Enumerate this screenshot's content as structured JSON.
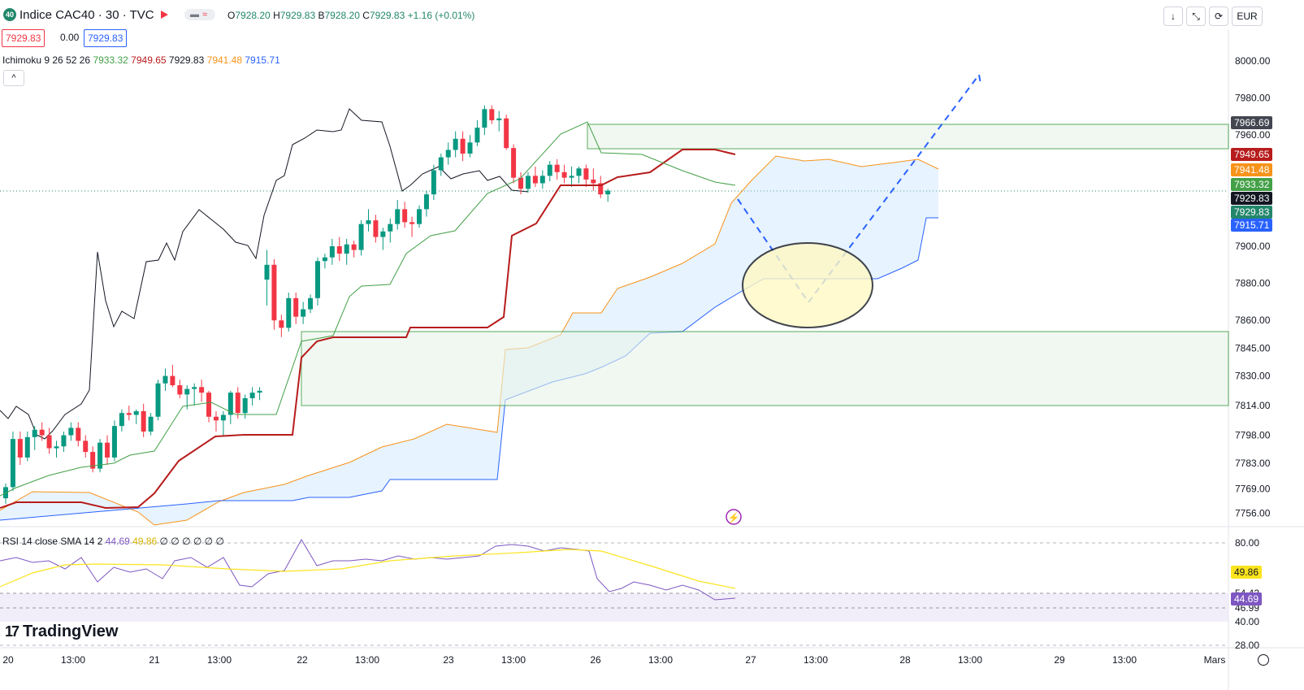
{
  "header": {
    "symbol_badge": "40",
    "title": "Indice CAC40 · 30 · TVC",
    "ohlc": {
      "o_label": "O",
      "o": "7928.20",
      "h_label": "H",
      "h": "7929.83",
      "b_label": "B",
      "b": "7928.20",
      "c_label": "C",
      "c": "7929.83",
      "change": "+1.16 (+0.01%)"
    },
    "sell_price": "7929.83",
    "spread": "0.00",
    "buy_price": "7929.83",
    "currency": "EUR",
    "buttons": [
      "↓",
      "⤡",
      "⟳"
    ]
  },
  "indicator": {
    "name": "Ichimoku",
    "params": "9 26 52 26",
    "values": [
      {
        "v": "7933.32",
        "color": "#43a047"
      },
      {
        "v": "7949.65",
        "color": "#b71c1c"
      },
      {
        "v": "7929.83",
        "color": "#131722"
      },
      {
        "v": "7941.48",
        "color": "#f7931a"
      },
      {
        "v": "7915.71",
        "color": "#2962ff"
      }
    ],
    "collapse_icon": "^"
  },
  "rsi": {
    "name": "RSI",
    "params": "14 close SMA 14 2",
    "value": "44.69",
    "sma": "49.86",
    "extra": "∅ ∅ ∅ ∅ ∅ ∅",
    "axis": [
      "80.00",
      "54.42",
      "46.99",
      "40.00",
      "28.00"
    ],
    "labels": [
      {
        "v": "49.86",
        "color": "#fbe41d",
        "fg": "#131722"
      },
      {
        "v": "44.69",
        "color": "#7e57c2",
        "fg": "#ffffff"
      }
    ]
  },
  "logo": "TradingView",
  "chart_data": {
    "type": "candlestick",
    "title": "Indice CAC40 · 30 · TVC",
    "y_axis_labels": [
      "8000.00",
      "7980.00",
      "7960.00",
      "7900.00",
      "7880.00",
      "7860.00",
      "7845.00",
      "7830.00",
      "7814.00",
      "7798.00",
      "7783.00",
      "7769.00",
      "7756.00"
    ],
    "price_labels": [
      {
        "v": "7966.69",
        "color": "#434651"
      },
      {
        "v": "7949.65",
        "color": "#b71c1c"
      },
      {
        "v": "7941.48",
        "color": "#f7931a"
      },
      {
        "v": "7933.32",
        "color": "#43a047"
      },
      {
        "v": "7929.83",
        "color": "#131722"
      },
      {
        "v": "7929.83",
        "color": "#22876b"
      },
      {
        "v": "7915.71",
        "color": "#2962ff"
      }
    ],
    "x_axis_labels": [
      "20",
      "13:00",
      "21",
      "13:00",
      "22",
      "13:00",
      "23",
      "13:00",
      "26",
      "13:00",
      "27",
      "13:00",
      "28",
      "13:00",
      "29",
      "13:00",
      "Mars"
    ],
    "candles": [
      [
        7764,
        7772,
        7761,
        7770
      ],
      [
        7770,
        7800,
        7768,
        7796
      ],
      [
        7796,
        7800,
        7782,
        7786
      ],
      [
        7786,
        7800,
        7784,
        7797
      ],
      [
        7797,
        7803,
        7790,
        7801
      ],
      [
        7801,
        7805,
        7795,
        7798
      ],
      [
        7798,
        7802,
        7788,
        7791
      ],
      [
        7791,
        7795,
        7786,
        7792
      ],
      [
        7792,
        7800,
        7789,
        7798
      ],
      [
        7798,
        7805,
        7795,
        7802
      ],
      [
        7802,
        7805,
        7792,
        7795
      ],
      [
        7795,
        7798,
        7786,
        7789
      ],
      [
        7789,
        7792,
        7778,
        7780
      ],
      [
        7780,
        7796,
        7778,
        7794
      ],
      [
        7794,
        7798,
        7782,
        7786
      ],
      [
        7786,
        7806,
        7784,
        7803
      ],
      [
        7803,
        7812,
        7800,
        7810
      ],
      [
        7810,
        7814,
        7806,
        7809
      ],
      [
        7809,
        7812,
        7804,
        7811
      ],
      [
        7811,
        7815,
        7797,
        7800
      ],
      [
        7800,
        7810,
        7798,
        7808
      ],
      [
        7808,
        7828,
        7806,
        7826
      ],
      [
        7826,
        7834,
        7822,
        7830
      ],
      [
        7830,
        7836,
        7824,
        7825
      ],
      [
        7825,
        7828,
        7818,
        7820
      ],
      [
        7820,
        7825,
        7812,
        7823
      ],
      [
        7823,
        7826,
        7814,
        7824
      ],
      [
        7824,
        7828,
        7816,
        7821
      ],
      [
        7821,
        7822,
        7805,
        7808
      ],
      [
        7808,
        7811,
        7800,
        7806
      ],
      [
        7806,
        7811,
        7798,
        7809
      ],
      [
        7809,
        7822,
        7804,
        7821
      ],
      [
        7821,
        7824,
        7807,
        7810
      ],
      [
        7810,
        7820,
        7807,
        7818
      ],
      [
        7818,
        7824,
        7814,
        7821
      ],
      [
        7821,
        7824,
        7817,
        7822
      ],
      [
        7882,
        7898,
        7868,
        7890
      ],
      [
        7890,
        7893,
        7855,
        7860
      ],
      [
        7860,
        7863,
        7851,
        7856
      ],
      [
        7856,
        7875,
        7854,
        7872
      ],
      [
        7872,
        7875,
        7858,
        7862
      ],
      [
        7862,
        7870,
        7858,
        7866
      ],
      [
        7866,
        7874,
        7864,
        7872
      ],
      [
        7872,
        7894,
        7868,
        7892
      ],
      [
        7892,
        7896,
        7888,
        7894
      ],
      [
        7894,
        7904,
        7890,
        7900
      ],
      [
        7900,
        7905,
        7892,
        7896
      ],
      [
        7896,
        7904,
        7890,
        7901
      ],
      [
        7901,
        7903,
        7894,
        7898
      ],
      [
        7898,
        7914,
        7895,
        7912
      ],
      [
        7912,
        7920,
        7908,
        7914
      ],
      [
        7914,
        7917,
        7902,
        7905
      ],
      [
        7905,
        7910,
        7898,
        7908
      ],
      [
        7908,
        7915,
        7902,
        7912
      ],
      [
        7912,
        7925,
        7909,
        7920
      ],
      [
        7920,
        7924,
        7910,
        7913
      ],
      [
        7913,
        7916,
        7905,
        7912
      ],
      [
        7912,
        7922,
        7910,
        7920
      ],
      [
        7920,
        7930,
        7916,
        7928
      ],
      [
        7928,
        7944,
        7925,
        7941
      ],
      [
        7941,
        7950,
        7938,
        7948
      ],
      [
        7948,
        7956,
        7944,
        7952
      ],
      [
        7952,
        7962,
        7948,
        7958
      ],
      [
        7958,
        7962,
        7946,
        7950
      ],
      [
        7950,
        7960,
        7948,
        7956
      ],
      [
        7956,
        7968,
        7954,
        7964
      ],
      [
        7964,
        7976,
        7960,
        7974
      ],
      [
        7974,
        7976,
        7966,
        7968
      ],
      [
        7968,
        7973,
        7962,
        7969
      ],
      [
        7969,
        7971,
        7952,
        7953
      ],
      [
        7953,
        7955,
        7934,
        7937
      ],
      [
        7937,
        7940,
        7928,
        7931
      ],
      [
        7931,
        7940,
        7929,
        7938
      ],
      [
        7938,
        7943,
        7932,
        7934
      ],
      [
        7934,
        7941,
        7931,
        7938
      ],
      [
        7938,
        7946,
        7935,
        7944
      ],
      [
        7944,
        7947,
        7936,
        7940
      ],
      [
        7940,
        7944,
        7934,
        7937
      ],
      [
        7937,
        7943,
        7932,
        7938
      ],
      [
        7938,
        7943,
        7934,
        7942
      ],
      [
        7942,
        7944,
        7932,
        7936
      ],
      [
        7936,
        7942,
        7930,
        7934
      ],
      [
        7934,
        7938,
        7926,
        7928
      ],
      [
        7928,
        7931,
        7924,
        7930
      ]
    ]
  }
}
